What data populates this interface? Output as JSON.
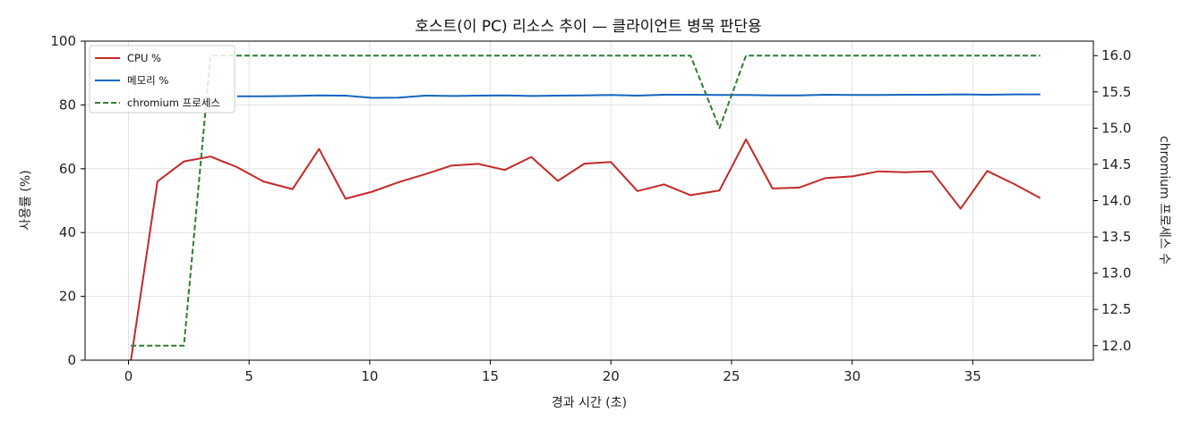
{
  "chart_data": {
    "type": "line",
    "title": "호스트(이 PC) 리소스 추이 — 클라이언트 병목 판단용",
    "xlabel": "경과 시간 (초)",
    "ylabel": "사용률 (%)",
    "y2label": "chromium 프로세스 수",
    "xlim": [
      -1.8,
      40.0
    ],
    "ylim": [
      0,
      100
    ],
    "y2lim": [
      11.8,
      16.2
    ],
    "xticks": [
      0,
      5,
      10,
      15,
      20,
      25,
      30,
      35
    ],
    "yticks": [
      0,
      20,
      40,
      60,
      80,
      100
    ],
    "y2ticks": [
      12.0,
      12.5,
      13.0,
      13.5,
      14.0,
      14.5,
      15.0,
      15.5,
      16.0
    ],
    "grid": true,
    "legend_position": "top-left",
    "x": [
      0.1,
      1.2,
      2.3,
      3.4,
      4.5,
      5.6,
      6.8,
      7.9,
      9.0,
      10.1,
      11.2,
      12.3,
      13.4,
      14.5,
      15.6,
      16.7,
      17.8,
      18.9,
      20.0,
      21.1,
      22.2,
      23.3,
      24.5,
      25.6,
      26.7,
      27.8,
      28.9,
      30.0,
      31.1,
      32.2,
      33.3,
      34.5,
      35.6,
      36.7,
      37.8
    ],
    "series": [
      {
        "name": "CPU %",
        "axis": "left",
        "color": "#c62828",
        "style": "solid",
        "values": [
          0,
          56,
          62.3,
          63.8,
          60.5,
          56,
          53.6,
          66.2,
          50.6,
          52.8,
          55.8,
          58.3,
          61,
          61.5,
          59.6,
          63.7,
          56.2,
          61.6,
          62.1,
          53,
          55.1,
          51.7,
          53.2,
          69.2,
          53.8,
          54.1,
          57.1,
          57.6,
          59.2,
          58.9,
          59.2,
          47.5,
          59.3,
          55.3,
          50.8
        ]
      },
      {
        "name": "메모리 %",
        "axis": "left",
        "color": "#1565c0",
        "style": "solid",
        "values": [
          null,
          null,
          null,
          null,
          82.7,
          82.7,
          82.8,
          83,
          82.9,
          82.2,
          82.3,
          82.9,
          82.8,
          82.9,
          83,
          82.8,
          82.9,
          83,
          83.1,
          82.9,
          83.2,
          83.2,
          83.1,
          83.1,
          83,
          83,
          83.2,
          83.1,
          83.1,
          83.2,
          83.2,
          83.3,
          83.2,
          83.3,
          83.3
        ]
      },
      {
        "name": "chromium 프로세스",
        "axis": "right",
        "color": "#2e7d32",
        "style": "dashed",
        "values": [
          12,
          12,
          12,
          16,
          16,
          16,
          16,
          16,
          16,
          16,
          16,
          16,
          16,
          16,
          16,
          16,
          16,
          16,
          16,
          16,
          16,
          16,
          15,
          16,
          16,
          16,
          16,
          16,
          16,
          16,
          16,
          16,
          16,
          16,
          16
        ]
      }
    ]
  }
}
